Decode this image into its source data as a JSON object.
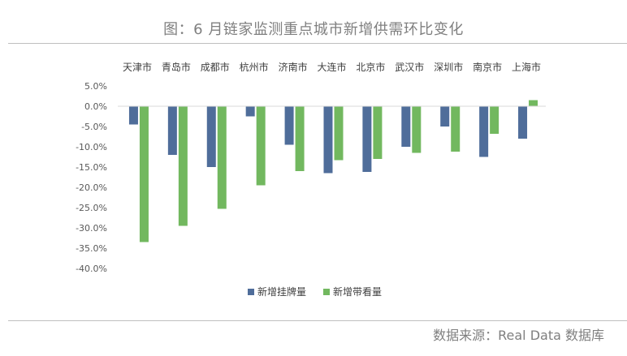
{
  "title": "图：6 月链家监测重点城市新增供需环比变化",
  "source": "数据来源：Real Data 数据库",
  "colors": {
    "series_1": "#4f6d9a",
    "series_2": "#72b85f",
    "axis": "#d9d9d9"
  },
  "chart_data": {
    "type": "bar",
    "categories": [
      "天津市",
      "青岛市",
      "成都市",
      "杭州市",
      "济南市",
      "大连市",
      "北京市",
      "武汉市",
      "深圳市",
      "南京市",
      "上海市"
    ],
    "series": [
      {
        "name": "新增挂牌量",
        "values": [
          -4.5,
          -12.0,
          -15.0,
          -2.5,
          -9.5,
          -16.5,
          -16.2,
          -10.0,
          -5.0,
          -12.5,
          -8.0
        ]
      },
      {
        "name": "新增带看量",
        "values": [
          -33.5,
          -29.5,
          -25.3,
          -19.5,
          -16.0,
          -13.3,
          -13.0,
          -11.5,
          -11.2,
          -6.8,
          1.5
        ]
      }
    ],
    "ylim": [
      -40,
      5
    ],
    "yticks": [
      5,
      0,
      -5,
      -10,
      -15,
      -20,
      -25,
      -30,
      -35,
      -40
    ],
    "ytick_labels": [
      "5.0%",
      "0.0%",
      "-5.0%",
      "-10.0%",
      "-15.0%",
      "-20.0%",
      "-25.0%",
      "-30.0%",
      "-35.0%",
      "-40.0%"
    ],
    "legend_position": "bottom",
    "grid": false
  }
}
